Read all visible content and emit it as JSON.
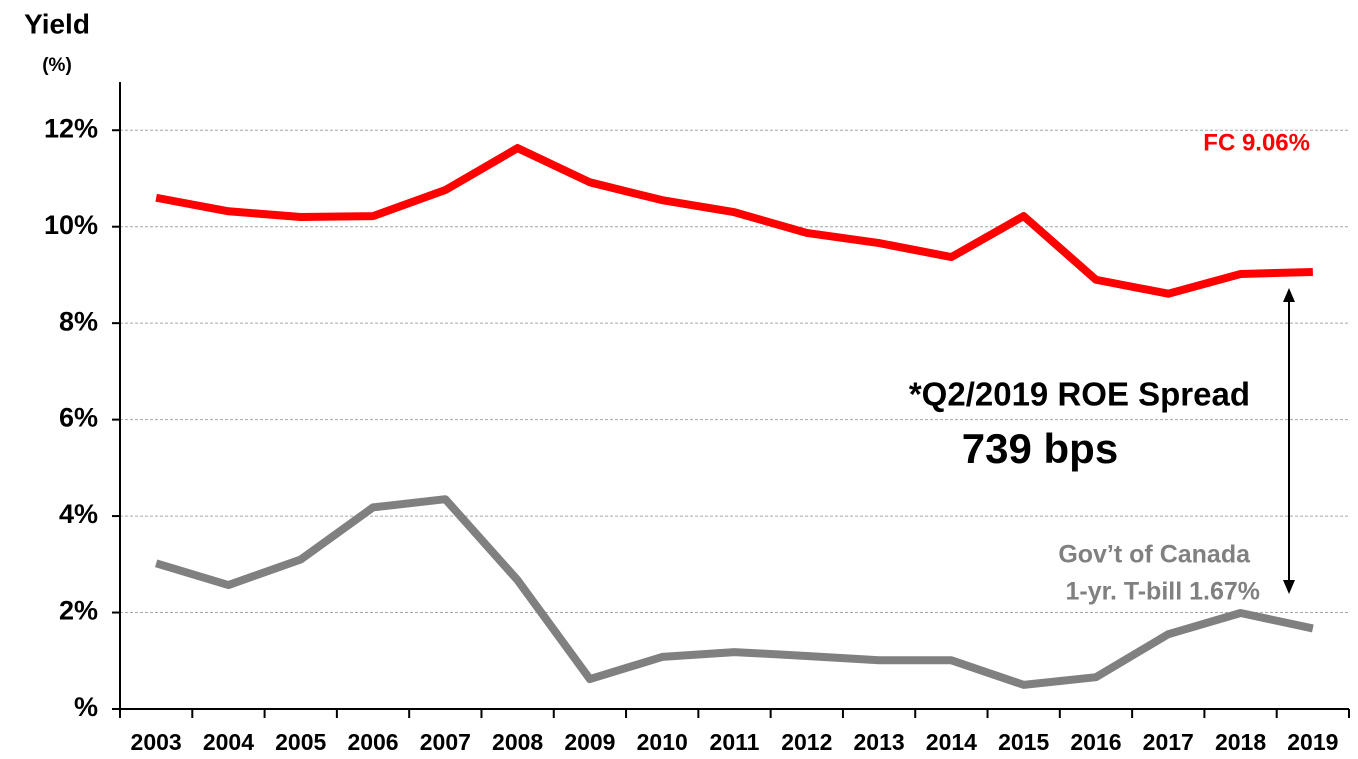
{
  "chart_data": {
    "type": "line",
    "y_label": "Yield",
    "y_unit": "(%)",
    "categories": [
      "2003",
      "2004",
      "2005",
      "2006",
      "2007",
      "2008",
      "2009",
      "2010",
      "2011",
      "2012",
      "2013",
      "2014",
      "2015",
      "2016",
      "2017",
      "2018",
      "2019"
    ],
    "series": [
      {
        "name": "FC",
        "color": "#ff0000",
        "values": [
          10.6,
          10.32,
          10.2,
          10.22,
          10.76,
          11.63,
          10.92,
          10.55,
          10.3,
          9.87,
          9.66,
          9.37,
          10.22,
          8.9,
          8.61,
          9.02,
          9.06
        ]
      },
      {
        "name": "Gov't of Canada 1-yr. T-bill",
        "color": "#808080",
        "values": [
          3.02,
          2.57,
          3.1,
          4.18,
          4.35,
          2.67,
          0.62,
          1.08,
          1.18,
          1.1,
          1.01,
          1.01,
          0.5,
          0.66,
          1.55,
          1.99,
          1.67
        ]
      }
    ],
    "ylim": [
      0,
      13
    ],
    "yticks": [
      {
        "value": 0,
        "label": "%"
      },
      {
        "value": 2,
        "label": "2%"
      },
      {
        "value": 4,
        "label": "4%"
      },
      {
        "value": 6,
        "label": "6%"
      },
      {
        "value": 8,
        "label": "8%"
      },
      {
        "value": 10,
        "label": "10%"
      },
      {
        "value": 12,
        "label": "12%"
      }
    ],
    "grid": true,
    "annotations": [
      "FC 9.06%",
      "*Q2/2019 ROE Spread",
      "739 bps",
      "Gov’t  of Canada",
      "1-yr. T-bill 1.67%"
    ]
  }
}
